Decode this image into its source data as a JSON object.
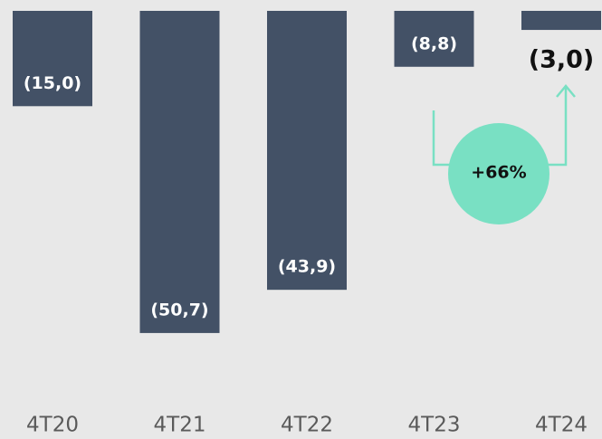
{
  "chart_data": {
    "type": "bar",
    "categories": [
      "4T20",
      "4T21",
      "4T22",
      "4T23",
      "4T24"
    ],
    "values": [
      -15.0,
      -50.7,
      -43.9,
      -8.8,
      -3.0
    ],
    "value_labels": [
      "(15,0)",
      "(50,7)",
      "(43,9)",
      "(8,8)",
      "(3,0)"
    ],
    "color": "#435166",
    "ylim": [
      -55,
      0
    ],
    "annotation": "+66%",
    "annotation_color": "#79e0c3"
  }
}
